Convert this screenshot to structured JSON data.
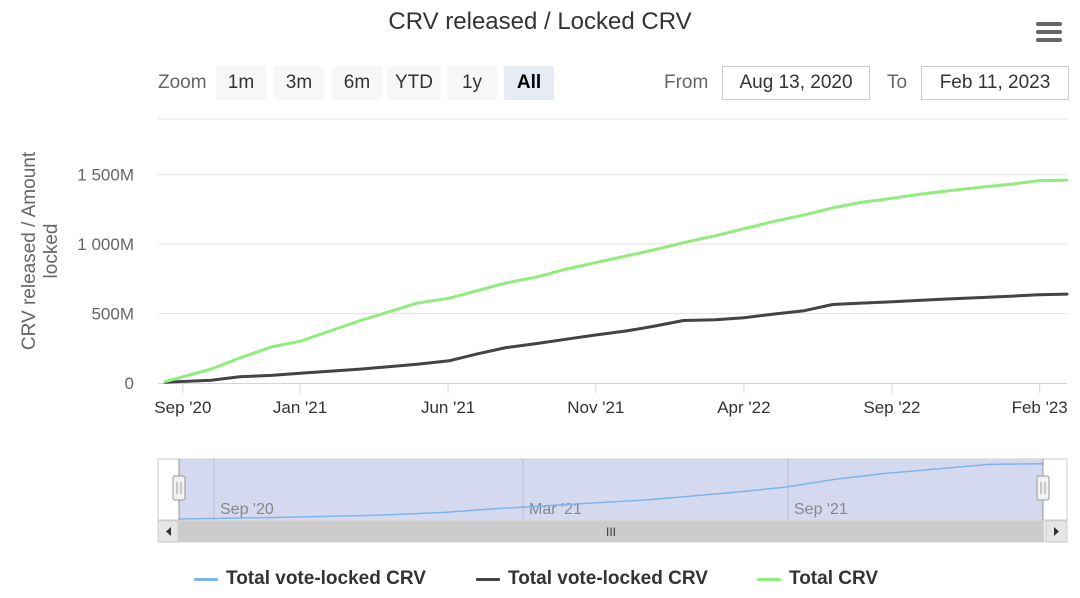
{
  "title": "CRV released / Locked CRV",
  "range_selector": {
    "zoom_label": "Zoom",
    "buttons": [
      "1m",
      "3m",
      "6m",
      "YTD",
      "1y",
      "All"
    ],
    "active": "All",
    "from_label": "From",
    "from_value": "Aug 13, 2020",
    "to_label": "To",
    "to_value": "Feb 11, 2023"
  },
  "colors": {
    "series_vote_blue": "#7cb5ec",
    "series_vote_dark": "#434348",
    "series_total": "#90ed7d",
    "navigator_mask": "#d4d9ef"
  },
  "chart_data": {
    "type": "line",
    "title": "CRV released / Locked CRV",
    "ylabel": "CRV released / Amount locked",
    "xlabel": "",
    "ylim": [
      0,
      1900
    ],
    "y_unit": "M",
    "y_ticks": [
      0,
      500,
      1000,
      1500
    ],
    "y_tick_labels": [
      "0",
      "500M",
      "1 000M",
      "1 500M"
    ],
    "x_range": [
      2020.6,
      2023.16
    ],
    "x_ticks": [
      2020.67,
      2021.0,
      2021.417,
      2021.833,
      2022.25,
      2022.667,
      2023.083
    ],
    "x_tick_labels": [
      "Sep '20",
      "Jan '21",
      "Jun '21",
      "Nov '21",
      "Apr '22",
      "Sep '22",
      "Feb '23"
    ],
    "series": [
      {
        "name": "Total vote-locked CRV",
        "visible": false,
        "x": [],
        "values": []
      },
      {
        "name": "Total vote-locked CRV",
        "visible": true,
        "x": [
          2020.62,
          2020.75,
          2020.83,
          2020.92,
          2021.0,
          2021.17,
          2021.33,
          2021.42,
          2021.5,
          2021.58,
          2021.67,
          2021.75,
          2021.83,
          2021.92,
          2022.0,
          2022.08,
          2022.17,
          2022.25,
          2022.33,
          2022.42,
          2022.5,
          2022.58,
          2022.67,
          2022.75,
          2022.83,
          2022.92,
          2023.0,
          2023.08,
          2023.16
        ],
        "values": [
          5,
          20,
          45,
          55,
          70,
          100,
          135,
          160,
          210,
          255,
          285,
          315,
          345,
          375,
          410,
          450,
          455,
          470,
          495,
          520,
          565,
          575,
          585,
          595,
          605,
          615,
          625,
          635,
          640
        ]
      },
      {
        "name": "Total CRV",
        "visible": true,
        "x": [
          2020.62,
          2020.75,
          2020.83,
          2020.92,
          2021.0,
          2021.17,
          2021.33,
          2021.42,
          2021.5,
          2021.58,
          2021.67,
          2021.75,
          2021.83,
          2021.92,
          2022.0,
          2022.08,
          2022.17,
          2022.25,
          2022.33,
          2022.42,
          2022.5,
          2022.58,
          2022.67,
          2022.75,
          2022.83,
          2022.92,
          2023.0,
          2023.08,
          2023.16
        ],
        "values": [
          10,
          100,
          180,
          260,
          300,
          450,
          575,
          610,
          665,
          720,
          765,
          820,
          865,
          915,
          960,
          1010,
          1060,
          1110,
          1160,
          1210,
          1260,
          1300,
          1330,
          1360,
          1385,
          1410,
          1430,
          1455,
          1460
        ]
      }
    ]
  },
  "navigator": {
    "labels": [
      "Sep '20",
      "Mar '21",
      "Sep '21"
    ],
    "x": [
      2020.62,
      2020.9,
      2021.2,
      2021.4,
      2021.55,
      2021.7,
      2021.85,
      2022.0,
      2022.1,
      2022.25,
      2022.4,
      2022.55,
      2022.7,
      2022.85,
      2023.0,
      2023.16
    ],
    "values": [
      0,
      2,
      5,
      9,
      14,
      18,
      22,
      26,
      30,
      36,
      43,
      54,
      62,
      68,
      74,
      75
    ],
    "scrollbar_glyph": "III"
  }
}
